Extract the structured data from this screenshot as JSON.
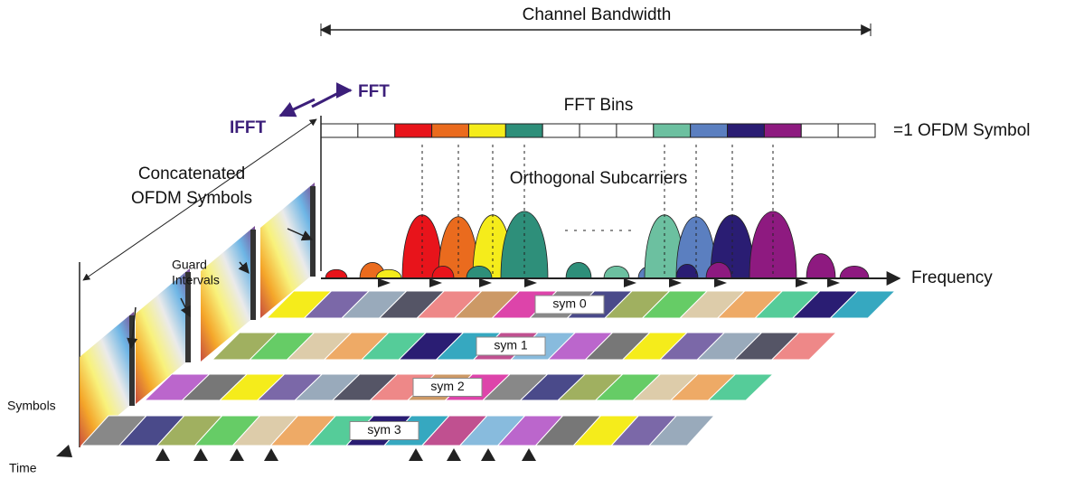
{
  "header": {
    "title": "Channel Bandwidth"
  },
  "transforms": {
    "forward": "FFT",
    "inverse": "IFFT"
  },
  "fft_bins": {
    "title": "FFT Bins",
    "caption": "=1 OFDM Symbol"
  },
  "concatenated": {
    "line1": "Concatenated",
    "line2": "OFDM Symbols"
  },
  "subcarriers": {
    "title": "Orthogonal Subcarriers"
  },
  "guard": {
    "line1": "Guard",
    "line2": "Intervals"
  },
  "axes": {
    "frequency": "Frequency",
    "symbols": "Symbols",
    "time": "Time"
  },
  "symbols": [
    "sym 0",
    "sym 1",
    "sym 2",
    "sym 3"
  ]
}
